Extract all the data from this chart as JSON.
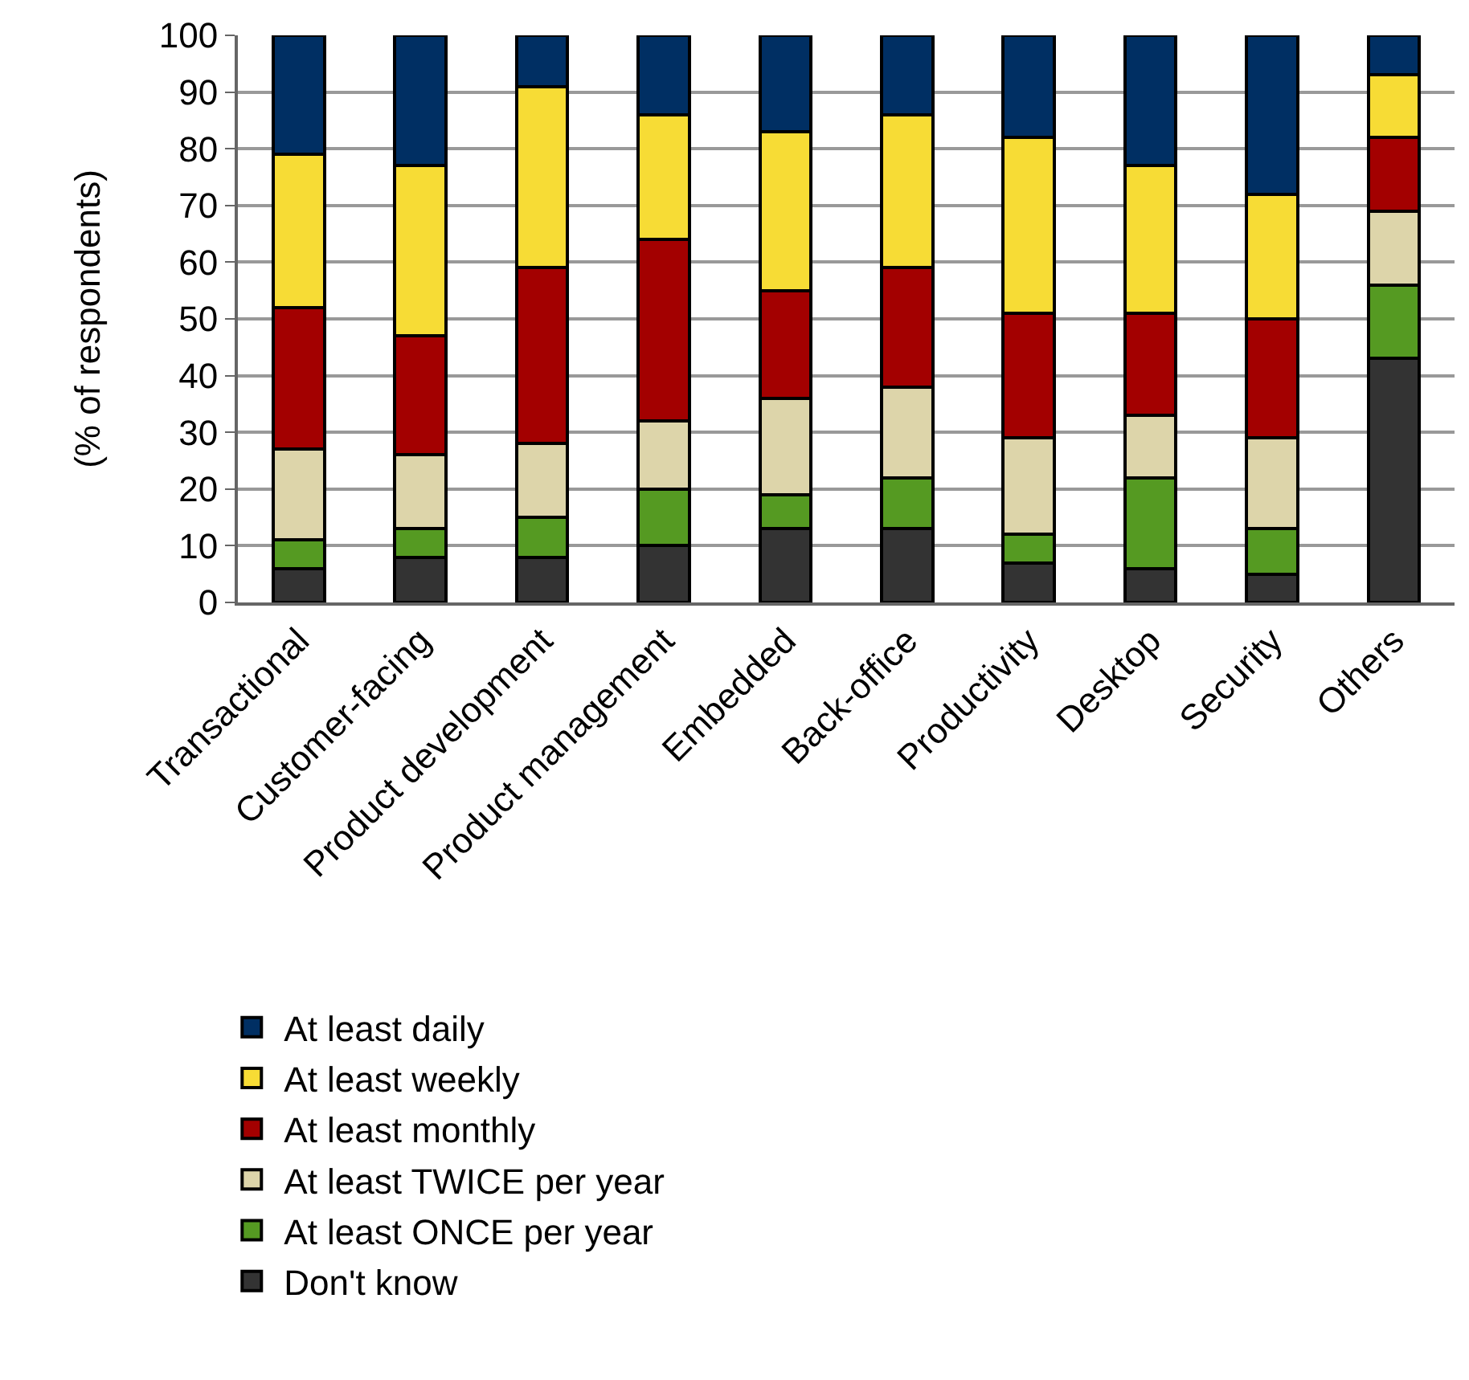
{
  "chart_data": {
    "type": "bar",
    "stacked": true,
    "ylabel": "(% of respondents)",
    "categories": [
      "Transactional",
      "Customer-facing",
      "Product development",
      "Product management",
      "Embedded",
      "Back-office",
      "Productivity",
      "Desktop",
      "Security",
      "Others"
    ],
    "series": [
      {
        "name": "Don't know",
        "color": "#333333",
        "values": [
          6,
          8,
          8,
          10,
          13,
          13,
          7,
          6,
          5,
          43
        ]
      },
      {
        "name": "At least ONCE per year",
        "color": "#559a22",
        "values": [
          5,
          5,
          7,
          10,
          6,
          9,
          5,
          16,
          8,
          13
        ]
      },
      {
        "name": "At least TWICE per year",
        "color": "#ddd5aa",
        "values": [
          16,
          13,
          13,
          12,
          17,
          16,
          17,
          11,
          16,
          13
        ]
      },
      {
        "name": "At least monthly",
        "color": "#a30000",
        "values": [
          25,
          21,
          31,
          32,
          19,
          21,
          22,
          18,
          21,
          13
        ]
      },
      {
        "name": "At least weekly",
        "color": "#f7dc35",
        "values": [
          27,
          30,
          32,
          22,
          28,
          27,
          31,
          26,
          22,
          11
        ]
      },
      {
        "name": "At least daily",
        "color": "#002f63",
        "values": [
          21,
          23,
          9,
          14,
          17,
          14,
          18,
          23,
          28,
          7
        ]
      }
    ],
    "ylim": [
      0,
      100
    ],
    "yticks": [
      0,
      10,
      20,
      30,
      40,
      50,
      60,
      70,
      80,
      90,
      100
    ],
    "grid": "y",
    "legend": "bottom"
  }
}
